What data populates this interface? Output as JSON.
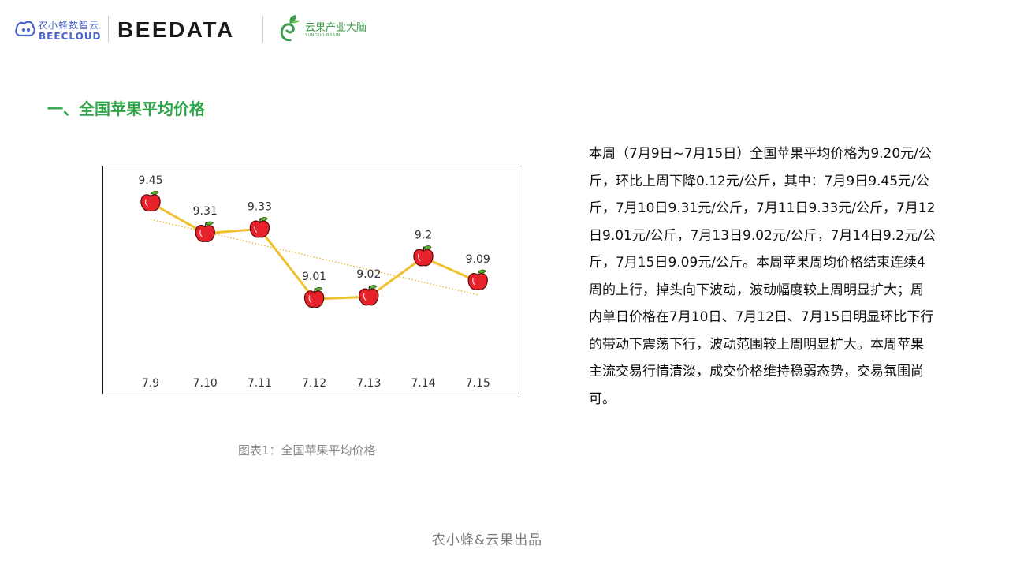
{
  "header": {
    "beecloud_cn": "农小蜂数智云",
    "beecloud_en": "BEECLOUD",
    "beedata": "BEEDATA",
    "yunguo_cn": "云果产业大脑",
    "yunguo_en": "YUNGUO BRAIN",
    "colors": {
      "beecloud": "#4a64c8",
      "yunguo": "#3e9c4c"
    }
  },
  "section_heading": "一、全国苹果平均价格",
  "chart_data": {
    "type": "line",
    "title": "",
    "xlabel": "",
    "ylabel": "",
    "categories": [
      "7.9",
      "7.10",
      "7.11",
      "7.12",
      "7.13",
      "7.14",
      "7.15"
    ],
    "series": [
      {
        "values": [
          9.45,
          9.31,
          9.33,
          9.01,
          9.02,
          9.2,
          9.09
        ],
        "color": "#f0c030",
        "marker": "apple-icon"
      }
    ],
    "data_labels": [
      "9.45",
      "9.31",
      "9.33",
      "9.01",
      "9.02",
      "9.2",
      "9.09"
    ],
    "trendline": {
      "type": "linear",
      "style": "dotted",
      "color": "#e8b020"
    },
    "grid": false,
    "legend": "none",
    "y_axis_visible": false
  },
  "chart_caption": "图表1：全国苹果平均价格",
  "analysis": "本周（7月9日~7月15日）全国苹果平均价格为9.20元/公斤，环比上周下降0.12元/公斤，其中：7月9日9.45元/公斤，7月10日9.31元/公斤，7月11日9.33元/公斤，7月12日9.01元/公斤，7月13日9.02元/公斤，7月14日9.2元/公斤，7月15日9.09元/公斤。本周苹果周均价格结束连续4周的上行，掉头向下波动，波动幅度较上周明显扩大；周内单日价格在7月10日、7月12日、7月15日明显环比下行的带动下震荡下行，波动范围较上周明显扩大。本周苹果主流交易行情清淡，成交价格维持稳弱态势，交易氛围尚可。",
  "footer": "农小蜂&云果出品"
}
